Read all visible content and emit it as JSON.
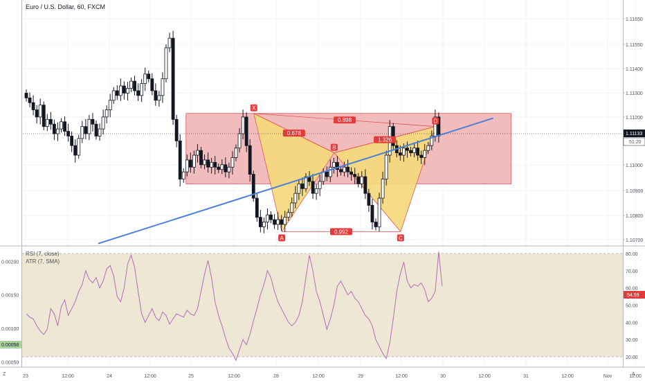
{
  "header": {
    "symbol_title": "Euro / U.S. Dollar, 60, FXCM"
  },
  "indicators": {
    "rsi_label": "RSI (7, close)",
    "atr_label": "ATR (7, SMA)"
  },
  "colors": {
    "bull": "#ffffff",
    "bear": "#131722",
    "zone_fill": "#f0b0b0",
    "zone_border": "#e05555",
    "pattern_fill": "#f5d87a",
    "pattern_line": "#e05555",
    "trendline": "#4a80d8",
    "rsi_line": "#b56bb8",
    "rsi_band": "#ede7d3",
    "badge_red": "#e33b3b",
    "badge_dark": "#131722",
    "badge_green": "#a6d49a"
  },
  "chart_data": [
    {
      "type": "candlestick",
      "title": "Euro / U.S. Dollar, 60, FXCM",
      "y_ticks": [
        "1.11650",
        "1.11550",
        "1.11400",
        "1.11300",
        "1.11200",
        "1.11000",
        "1.10900",
        "1.10800",
        "1.10700"
      ],
      "x_ticks": [
        "23",
        "12:00",
        "24",
        "12:00",
        "25",
        "12:00",
        "28",
        "12:00",
        "29",
        "12:00",
        "30",
        "12:00",
        "31",
        "12:00",
        "Nov",
        "12:00"
      ],
      "current_price": "1.11133",
      "countdown": "51:20",
      "ylim": [
        1.1068,
        1.1171
      ],
      "grid": true,
      "closes": [
        1.113,
        1.1128,
        1.1125,
        1.1122,
        1.1127,
        1.1118,
        1.1121,
        1.1119,
        1.1115,
        1.1117,
        1.112,
        1.1116,
        1.1114,
        1.111,
        1.1106,
        1.1113,
        1.1118,
        1.1115,
        1.1121,
        1.1119,
        1.1114,
        1.1117,
        1.1122,
        1.1125,
        1.1129,
        1.1133,
        1.1131,
        1.1135,
        1.1132,
        1.1134,
        1.1137,
        1.1133,
        1.1131,
        1.1136,
        1.114,
        1.1138,
        1.1133,
        1.1129,
        1.1131,
        1.1138,
        1.1151,
        1.1155,
        1.1121,
        1.1112,
        1.1096,
        1.1099,
        1.1104,
        1.1101,
        1.1106,
        1.1108,
        1.1102,
        1.1104,
        1.1101,
        1.1103,
        1.1101,
        1.11,
        1.1102,
        1.1099,
        1.1101,
        1.1105,
        1.1109,
        1.1115,
        1.1122,
        1.111,
        1.1098,
        1.1088,
        1.108,
        1.1076,
        1.1078,
        1.1081,
        1.1079,
        1.1077,
        1.1079,
        1.1077,
        1.108,
        1.1082,
        1.1086,
        1.109,
        1.1094,
        1.1092,
        1.1097,
        1.1095,
        1.109,
        1.1092,
        1.1095,
        1.1099,
        1.1097,
        1.1101,
        1.1103,
        1.11,
        1.1099,
        1.1101,
        1.1099,
        1.1098,
        1.1097,
        1.1094,
        1.1097,
        1.109,
        1.1085,
        1.1078,
        1.1076,
        1.1088,
        1.1096,
        1.1106,
        1.1118,
        1.111,
        1.1107,
        1.1106,
        1.1109,
        1.1108,
        1.1107,
        1.1109,
        1.1106,
        1.1105,
        1.1108,
        1.111,
        1.1114,
        1.1122,
        1.1114
      ]
    },
    {
      "type": "line",
      "series": [
        {
          "name": "RSI (7, close)",
          "values": [
            45,
            43,
            42,
            38,
            35,
            33,
            36,
            48,
            45,
            38,
            49,
            53,
            44,
            48,
            52,
            58,
            62,
            70,
            65,
            63,
            66,
            60,
            64,
            71,
            73,
            67,
            55,
            52,
            60,
            74,
            79,
            72,
            58,
            45,
            40,
            44,
            48,
            43,
            41,
            46,
            44,
            39,
            42,
            45,
            44,
            43,
            47,
            45,
            44,
            48,
            58,
            68,
            76,
            66,
            52,
            44,
            38,
            31,
            25,
            22,
            18,
            24,
            30,
            27,
            33,
            41,
            48,
            56,
            62,
            70,
            66,
            58,
            52,
            48,
            44,
            40,
            38,
            40,
            44,
            52,
            66,
            79,
            70,
            58,
            52,
            44,
            36,
            42,
            50,
            61,
            64,
            60,
            56,
            58,
            54,
            52,
            48,
            44,
            42,
            38,
            30,
            26,
            22,
            19,
            28,
            42,
            58,
            68,
            75,
            64,
            60,
            62,
            61,
            63,
            59,
            52,
            54,
            58,
            81,
            61
          ]
        }
      ],
      "y_ticks": [
        "80.00",
        "70.00",
        "60.00",
        "50.00",
        "40.00",
        "30.00",
        "20.00"
      ],
      "rsi_value": "54.59",
      "ylim": [
        14,
        84
      ],
      "band": [
        20,
        80
      ]
    },
    {
      "type": "line",
      "series": [
        {
          "name": "ATR (7, SMA)"
        }
      ],
      "y_ticks": [
        "0.00200",
        "0.00150",
        "0.00100",
        "0.00050"
      ],
      "atr_value": "0.00058",
      "ylim": [
        0.00042,
        0.00222
      ]
    }
  ],
  "pattern": {
    "points": [
      {
        "label": "X",
        "bar": 65,
        "price": 1.11235
      },
      {
        "label": "A",
        "bar": 73,
        "price": 1.1074
      },
      {
        "label": "B",
        "bar": 88,
        "price": 1.1107
      },
      {
        "label": "C",
        "bar": 107,
        "price": 1.1074
      },
      {
        "label": "D",
        "bar": 117,
        "price": 1.1118
      }
    ],
    "ratios": [
      {
        "text": "0.678",
        "from": "X",
        "to": "B"
      },
      {
        "text": "0.898",
        "from": "X",
        "to": "D"
      },
      {
        "text": "1.326",
        "from": "B",
        "to": "D"
      },
      {
        "text": "0.992",
        "from": "A",
        "to": "C"
      }
    ]
  },
  "zone": {
    "from_bar": 46,
    "to_bar": 139,
    "top": 1.11235,
    "bottom": 1.1094
  },
  "trendline": {
    "from_bar": 21,
    "from_price": 1.1069,
    "to_bar": 134,
    "to_price": 1.11215
  }
}
